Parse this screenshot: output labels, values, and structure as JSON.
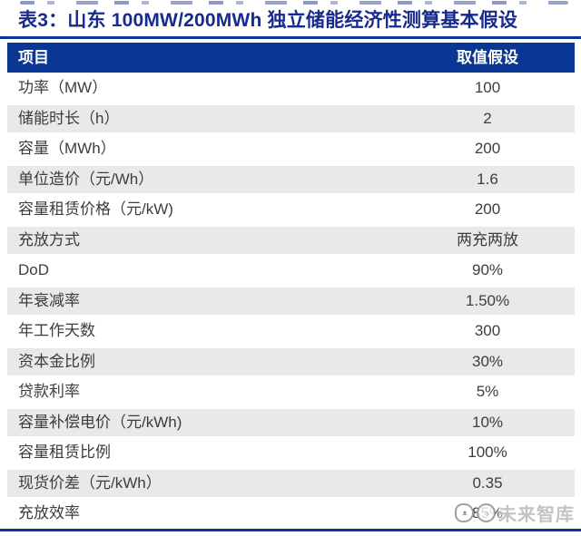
{
  "page": {
    "title": "表3：山东 100MW/200MWh 独立储能经济性测算基本假设"
  },
  "table": {
    "columns": [
      "项目",
      "取值假设"
    ],
    "rows": [
      {
        "item": "功率（MW）",
        "value": "100"
      },
      {
        "item": "储能时长（h）",
        "value": "2"
      },
      {
        "item": "容量（MWh）",
        "value": "200"
      },
      {
        "item": "单位造价（元/Wh）",
        "value": "1.6"
      },
      {
        "item": "容量租赁价格（元/kW)",
        "value": "200"
      },
      {
        "item": "充放方式",
        "value": "两充两放"
      },
      {
        "item": "DoD",
        "value": "90%"
      },
      {
        "item": "年衰减率",
        "value": "1.50%"
      },
      {
        "item": "年工作天数",
        "value": "300"
      },
      {
        "item": "资本金比例",
        "value": "30%"
      },
      {
        "item": "贷款利率",
        "value": "5%"
      },
      {
        "item": "容量补偿电价（元/kWh)",
        "value": "10%"
      },
      {
        "item": "容量租赁比例",
        "value": "100%"
      },
      {
        "item": "现货价差（元/kWh）",
        "value": "0.35"
      },
      {
        "item": "充放效率",
        "value": "85%"
      }
    ]
  },
  "watermark": {
    "text": "未来智库"
  },
  "colors": {
    "navy": "#0a3794",
    "title_navy": "#172a8d",
    "row_alt_gray": "#e9e9e9",
    "body_text": "#3d3d3d"
  }
}
